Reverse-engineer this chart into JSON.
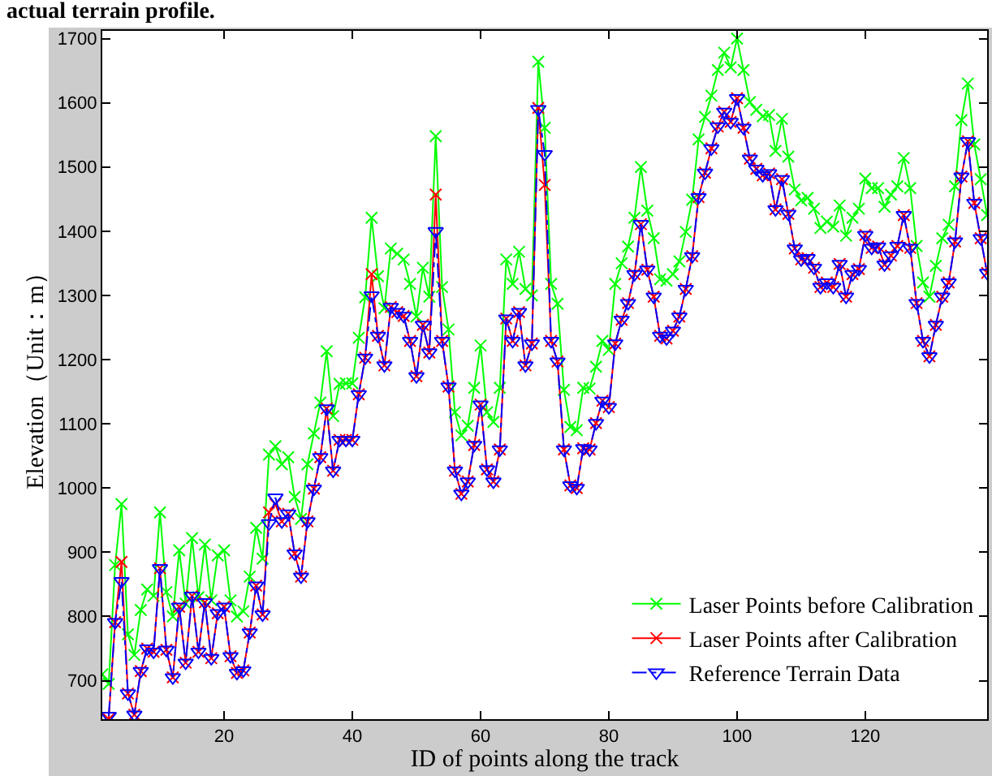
{
  "chart_data": {
    "type": "line",
    "annotations": [
      "actual terrain profile."
    ],
    "xlabel": "ID of points along the track",
    "ylabel": "Elevation（Unit：m）",
    "x": [
      1,
      2,
      3,
      4,
      5,
      6,
      7,
      8,
      9,
      10,
      11,
      12,
      13,
      14,
      15,
      16,
      17,
      18,
      19,
      20,
      21,
      22,
      23,
      24,
      25,
      26,
      27,
      28,
      29,
      30,
      31,
      32,
      33,
      34,
      35,
      36,
      37,
      38,
      39,
      40,
      41,
      42,
      43,
      44,
      45,
      46,
      47,
      48,
      49,
      50,
      51,
      52,
      53,
      54,
      55,
      56,
      57,
      58,
      59,
      60,
      61,
      62,
      63,
      64,
      65,
      66,
      67,
      68,
      69,
      70,
      71,
      72,
      73,
      74,
      75,
      76,
      77,
      78,
      79,
      80,
      81,
      82,
      83,
      84,
      85,
      86,
      87,
      88,
      89,
      90,
      91,
      92,
      93,
      94,
      95,
      96,
      97,
      98,
      99,
      100,
      101,
      102,
      103,
      104,
      105,
      106,
      107,
      108,
      109,
      110,
      111,
      112,
      113,
      114,
      115,
      116,
      117,
      118,
      119,
      120,
      121,
      122,
      123,
      124,
      125,
      126,
      127,
      128,
      129,
      130,
      131,
      132,
      133,
      134,
      135,
      136,
      137,
      138,
      139
    ],
    "xlim": [
      1,
      139
    ],
    "xticks": [
      20,
      40,
      60,
      80,
      100,
      120
    ],
    "ylim": [
      640,
      1712
    ],
    "yticks": [
      700,
      800,
      900,
      1000,
      1100,
      1200,
      1300,
      1400,
      1500,
      1600,
      1700
    ],
    "grid": false,
    "legend": "bottom right",
    "series": [
      {
        "name": "Laser Points before Calibration",
        "color": "#00ff00",
        "marker": "cross",
        "line_style": "solid",
        "values": [
          710,
          695,
          880,
          975,
          772,
          740,
          810,
          842,
          832,
          962,
          838,
          800,
          903,
          820,
          922,
          830,
          912,
          825,
          895,
          903,
          825,
          800,
          808,
          862,
          938,
          890,
          1052,
          1065,
          1037,
          1048,
          986,
          952,
          1037,
          1085,
          1133,
          1213,
          1112,
          1162,
          1163,
          1163,
          1234,
          1297,
          1421,
          1330,
          1280,
          1373,
          1365,
          1356,
          1318,
          1267,
          1343,
          1298,
          1548,
          1313,
          1247,
          1118,
          1082,
          1097,
          1156,
          1222,
          1118,
          1103,
          1156,
          1356,
          1318,
          1368,
          1310,
          1300,
          1664,
          1561,
          1318,
          1287,
          1153,
          1095,
          1090,
          1156,
          1155,
          1189,
          1229,
          1215,
          1318,
          1350,
          1376,
          1421,
          1500,
          1432,
          1389,
          1325,
          1323,
          1333,
          1353,
          1399,
          1449,
          1543,
          1578,
          1611,
          1651,
          1678,
          1655,
          1700,
          1651,
          1601,
          1589,
          1579,
          1581,
          1525,
          1575,
          1516,
          1465,
          1448,
          1452,
          1435,
          1405,
          1415,
          1407,
          1440,
          1393,
          1421,
          1435,
          1482,
          1467,
          1467,
          1438,
          1457,
          1470,
          1514,
          1467,
          1377,
          1320,
          1298,
          1346,
          1389,
          1410,
          1470,
          1573,
          1630,
          1535,
          1481,
          1425
        ]
      },
      {
        "name": "Laser Points after Calibration",
        "color": "#ff0000",
        "marker": "cross",
        "line_style": "solid",
        "values": [
          null,
          640,
          791,
          885,
          680,
          647,
          715,
          750,
          745,
          875,
          748,
          705,
          815,
          728,
          832,
          745,
          822,
          735,
          805,
          815,
          738,
          712,
          716,
          775,
          848,
          803,
          962,
          975,
          948,
          960,
          898,
          862,
          948,
          999,
          1048,
          1124,
          1027,
          1075,
          1075,
          1075,
          1146,
          1203,
          1333,
          1237,
          1191,
          1282,
          1274,
          1268,
          1229,
          1174,
          1254,
          1211,
          1457,
          1229,
          1158,
          1027,
          991,
          1010,
          1067,
          1130,
          1029,
          1010,
          1060,
          1264,
          1229,
          1274,
          1191,
          1225,
          1592,
          1472,
          1229,
          1197,
          1060,
          1004,
          1000,
          1062,
          1060,
          1101,
          1136,
          1126,
          1225,
          1262,
          1288,
          1333,
          1411,
          1340,
          1298,
          1237,
          1233,
          1245,
          1267,
          1310,
          1361,
          1453,
          1491,
          1529,
          1563,
          1586,
          1570,
          1607,
          1561,
          1513,
          1497,
          1487,
          1490,
          1434,
          1481,
          1427,
          1373,
          1356,
          1358,
          1343,
          1313,
          1320,
          1313,
          1349,
          1298,
          1333,
          1341,
          1394,
          1374,
          1376,
          1348,
          1362,
          1377,
          1425,
          1374,
          1288,
          1229,
          1205,
          1254,
          1298,
          1320,
          1384,
          1485,
          1540,
          1444,
          1389,
          1335
        ]
      },
      {
        "name": "Reference Terrain Data",
        "color": "#0000ff",
        "marker": "triangle",
        "line_style": "dashed",
        "values": [
          null,
          645,
          791,
          855,
          680,
          647,
          715,
          750,
          745,
          875,
          748,
          705,
          815,
          728,
          832,
          745,
          822,
          735,
          805,
          815,
          738,
          712,
          716,
          775,
          848,
          803,
          945,
          985,
          948,
          960,
          898,
          862,
          948,
          999,
          1048,
          1124,
          1027,
          1075,
          1075,
          1075,
          1146,
          1203,
          1300,
          1237,
          1191,
          1282,
          1274,
          1268,
          1229,
          1174,
          1254,
          1211,
          1400,
          1229,
          1158,
          1027,
          991,
          1010,
          1067,
          1130,
          1029,
          1010,
          1060,
          1264,
          1229,
          1274,
          1191,
          1225,
          1590,
          1520,
          1229,
          1197,
          1060,
          1004,
          1000,
          1062,
          1060,
          1101,
          1136,
          1126,
          1225,
          1262,
          1288,
          1333,
          1411,
          1340,
          1298,
          1237,
          1233,
          1245,
          1267,
          1310,
          1361,
          1453,
          1491,
          1529,
          1563,
          1586,
          1570,
          1607,
          1561,
          1513,
          1497,
          1487,
          1490,
          1434,
          1481,
          1427,
          1373,
          1356,
          1358,
          1343,
          1313,
          1320,
          1313,
          1349,
          1298,
          1333,
          1341,
          1394,
          1374,
          1376,
          1348,
          1362,
          1377,
          1425,
          1374,
          1288,
          1229,
          1205,
          1254,
          1298,
          1320,
          1384,
          1485,
          1540,
          1444,
          1389,
          1335
        ]
      }
    ]
  }
}
